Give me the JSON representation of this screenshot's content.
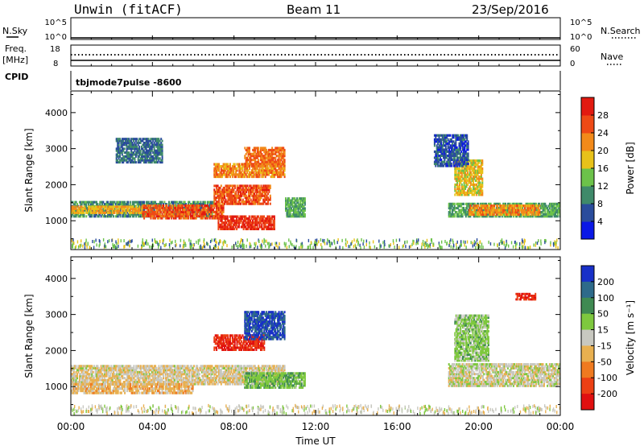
{
  "header": {
    "station": "Unwin (fitACF)",
    "beam": "Beam 11",
    "date": "23/Sep/2016"
  },
  "top_panels": {
    "nsky_label": "N.Sky",
    "nsky_ticks": [
      "10^5",
      "10^0"
    ],
    "nsearch_label": "N.Search",
    "nsearch_ticks": [
      "10^5",
      "10^0"
    ],
    "freq_label_1": "Freq.",
    "freq_label_2": "[MHz]",
    "freq_ticks": [
      "18",
      "8"
    ],
    "nave_label": "Nave",
    "nave_ticks": [
      "60",
      "0"
    ],
    "cpid_label": "CPID",
    "cpid_value": "tbjmode7pulse -8600"
  },
  "x_axis": {
    "title": "Time UT",
    "ticks": [
      "00:00",
      "04:00",
      "08:00",
      "12:00",
      "16:00",
      "20:00",
      "00:00"
    ]
  },
  "y_axis": {
    "title": "Slant Range [km]",
    "ticks": [
      "1000",
      "2000",
      "3000",
      "4000"
    ]
  },
  "power_scale": {
    "title": "Power [dB]",
    "ticks": [
      "4",
      "8",
      "12",
      "16",
      "20",
      "24",
      "28"
    ],
    "colors": [
      "#0a18e6",
      "#2a4c9c",
      "#3f8a6a",
      "#6cc24a",
      "#e8c21a",
      "#f28a1a",
      "#ee4a16",
      "#e21a10"
    ]
  },
  "velocity_scale": {
    "title": "Velocity [m s⁻¹]",
    "ticks": [
      "200",
      "100",
      "50",
      "15",
      "-15",
      "-50",
      "-100",
      "-200"
    ],
    "colors": [
      "#1830c8",
      "#2e6a8a",
      "#3f8a52",
      "#7ec83e",
      "#c8c8c0",
      "#e8b050",
      "#ef7a20",
      "#ec4014",
      "#e01010"
    ]
  },
  "chart_data": [
    {
      "type": "heatmap",
      "title": "Power [dB]",
      "xlabel": "Time UT",
      "ylabel": "Slant Range [km]",
      "xlim_hours": [
        0,
        24
      ],
      "ylim_km": [
        200,
        4600
      ],
      "color_range": [
        0,
        32
      ],
      "regions": [
        {
          "t": [
            0.0,
            7.0
          ],
          "r": [
            1100,
            1550
          ],
          "level": 10
        },
        {
          "t": [
            0.0,
            3.5
          ],
          "r": [
            1200,
            1420
          ],
          "level": 20
        },
        {
          "t": [
            3.5,
            7.5
          ],
          "r": [
            1050,
            1450
          ],
          "level": 26
        },
        {
          "t": [
            7.0,
            9.8
          ],
          "r": [
            1450,
            2000
          ],
          "level": 26
        },
        {
          "t": [
            7.2,
            10.0
          ],
          "r": [
            750,
            1150
          ],
          "level": 28
        },
        {
          "t": [
            7.0,
            10.5
          ],
          "r": [
            2200,
            2600
          ],
          "level": 22
        },
        {
          "t": [
            8.5,
            10.5
          ],
          "r": [
            2500,
            3050
          ],
          "level": 24
        },
        {
          "t": [
            10.5,
            11.5
          ],
          "r": [
            1100,
            1650
          ],
          "level": 12
        },
        {
          "t": [
            2.2,
            4.5
          ],
          "r": [
            2600,
            3300
          ],
          "level": 8
        },
        {
          "t": [
            18.5,
            24.0
          ],
          "r": [
            1100,
            1500
          ],
          "level": 12
        },
        {
          "t": [
            19.5,
            23.0
          ],
          "r": [
            1150,
            1450
          ],
          "level": 22
        },
        {
          "t": [
            18.8,
            20.2
          ],
          "r": [
            1700,
            2700
          ],
          "level": 18
        },
        {
          "t": [
            17.8,
            19.5
          ],
          "r": [
            2500,
            3400
          ],
          "level": 6
        }
      ]
    },
    {
      "type": "heatmap",
      "title": "Velocity [m s⁻¹]",
      "xlabel": "Time UT",
      "ylabel": "Slant Range [km]",
      "xlim_hours": [
        0,
        24
      ],
      "ylim_km": [
        200,
        4600
      ],
      "color_range": [
        -200,
        200
      ],
      "regions": [
        {
          "t": [
            0.0,
            10.5
          ],
          "r": [
            1050,
            1600
          ],
          "level": -10
        },
        {
          "t": [
            0.0,
            6.0
          ],
          "r": [
            800,
            1100
          ],
          "level": -30
        },
        {
          "t": [
            7.0,
            9.5
          ],
          "r": [
            2000,
            2450
          ],
          "level": -200
        },
        {
          "t": [
            8.5,
            10.5
          ],
          "r": [
            2300,
            3100
          ],
          "level": 200
        },
        {
          "t": [
            8.5,
            11.5
          ],
          "r": [
            950,
            1400
          ],
          "level": 40
        },
        {
          "t": [
            18.5,
            24.0
          ],
          "r": [
            1000,
            1650
          ],
          "level": 0
        },
        {
          "t": [
            18.8,
            20.5
          ],
          "r": [
            1700,
            3000
          ],
          "level": 30
        },
        {
          "t": [
            21.8,
            22.8
          ],
          "r": [
            3400,
            3600
          ],
          "level": -200
        }
      ]
    }
  ]
}
